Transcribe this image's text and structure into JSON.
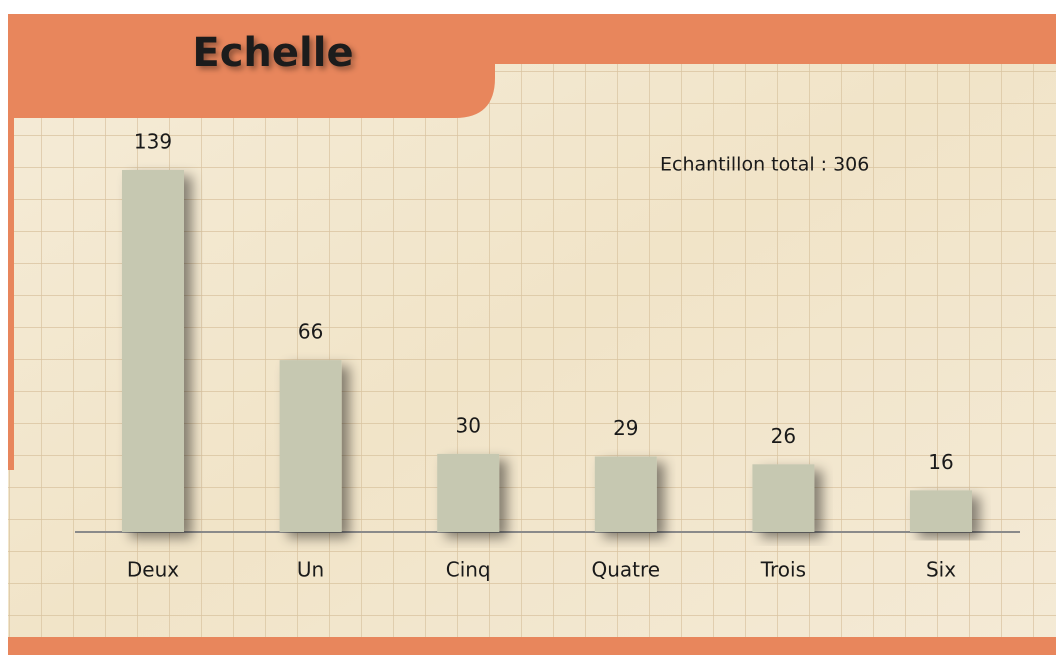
{
  "chart_data": {
    "type": "bar",
    "title": "Echelle",
    "annotation": "Echantillon total : 306",
    "categories": [
      "Deux",
      "Un",
      "Cinq",
      "Quatre",
      "Trois",
      "Six"
    ],
    "values": [
      139,
      66,
      30,
      29,
      26,
      16
    ],
    "color": "#c6c8b1"
  }
}
